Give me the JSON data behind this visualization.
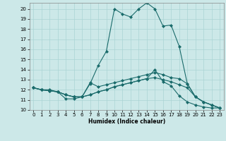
{
  "xlabel": "Humidex (Indice chaleur)",
  "bg_color": "#cce8e8",
  "grid_color": "#aad4d4",
  "line_color": "#1a6b6b",
  "xlim": [
    -0.5,
    23.5
  ],
  "ylim": [
    10,
    20.6
  ],
  "yticks": [
    10,
    11,
    12,
    13,
    14,
    15,
    16,
    17,
    18,
    19,
    20
  ],
  "xticks": [
    0,
    1,
    2,
    3,
    4,
    5,
    6,
    7,
    8,
    9,
    10,
    11,
    12,
    13,
    14,
    15,
    16,
    17,
    18,
    19,
    20,
    21,
    22,
    23
  ],
  "lines": [
    {
      "x": [
        0,
        1,
        2,
        3,
        4,
        5,
        6,
        7,
        8,
        9,
        10,
        11,
        12,
        13,
        14,
        15,
        16,
        17,
        18,
        19,
        20,
        21,
        22,
        23
      ],
      "y": [
        12.2,
        12.0,
        12.0,
        11.8,
        11.1,
        11.1,
        11.3,
        12.6,
        14.4,
        15.8,
        20.0,
        19.5,
        19.2,
        20.0,
        20.6,
        20.0,
        18.3,
        18.4,
        16.3,
        12.6,
        11.3,
        10.8,
        10.5,
        10.2
      ]
    },
    {
      "x": [
        0,
        1,
        2,
        3,
        4,
        5,
        6,
        7,
        8,
        9,
        10,
        11,
        12,
        13,
        14,
        15,
        16,
        17,
        18,
        19,
        20,
        21,
        22,
        23
      ],
      "y": [
        12.2,
        12.0,
        11.9,
        11.8,
        11.5,
        11.3,
        11.3,
        12.7,
        12.3,
        12.5,
        12.7,
        12.9,
        13.1,
        13.3,
        13.5,
        13.7,
        13.5,
        13.2,
        13.1,
        12.6,
        11.3,
        10.8,
        10.5,
        10.2
      ]
    },
    {
      "x": [
        0,
        1,
        2,
        3,
        4,
        5,
        6,
        7,
        8,
        9,
        10,
        11,
        12,
        13,
        14,
        15,
        16,
        17,
        18,
        19,
        20,
        21,
        22,
        23
      ],
      "y": [
        12.2,
        12.0,
        11.9,
        11.8,
        11.5,
        11.3,
        11.3,
        11.5,
        11.8,
        12.0,
        12.3,
        12.5,
        12.7,
        12.9,
        13.1,
        13.2,
        13.0,
        12.8,
        12.5,
        12.2,
        11.3,
        10.8,
        10.5,
        10.2
      ]
    },
    {
      "x": [
        0,
        1,
        2,
        3,
        4,
        5,
        6,
        7,
        8,
        9,
        10,
        11,
        12,
        13,
        14,
        15,
        16,
        17,
        18,
        19,
        20,
        21,
        22,
        23
      ],
      "y": [
        12.2,
        12.0,
        11.9,
        11.8,
        11.5,
        11.3,
        11.3,
        11.5,
        11.8,
        12.0,
        12.3,
        12.5,
        12.7,
        12.9,
        13.1,
        14.0,
        12.8,
        12.4,
        11.4,
        10.8,
        10.5,
        10.3,
        10.2,
        10.2
      ]
    }
  ],
  "marker": "D",
  "markersize": 2.0,
  "linewidth": 0.8
}
